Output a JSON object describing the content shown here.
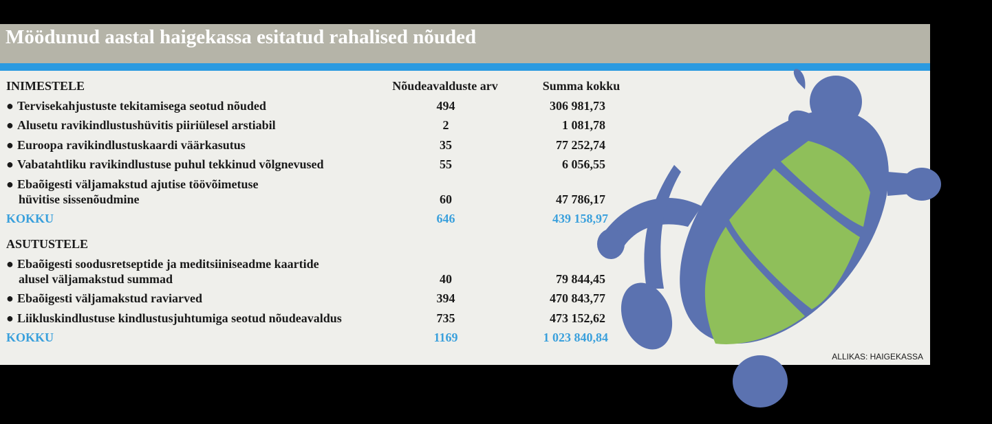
{
  "title": "Möödunud aastal haigekassa esitatud rahalised nõuded",
  "columns": [
    "Nõudeavalduste arv",
    "Summa kokku"
  ],
  "sections": [
    {
      "heading": "INIMESTELE",
      "rows": [
        {
          "lines": [
            "Tervisekahjustuste tekitamisega seotud nõuded"
          ],
          "count": "494",
          "sum": "306 981,73"
        },
        {
          "lines": [
            "Alusetu ravikindlustushüvitis piiriülesel arstiabil"
          ],
          "count": "2",
          "sum": "1 081,78"
        },
        {
          "lines": [
            "Euroopa ravikindlustuskaardi väärkasutus"
          ],
          "count": "35",
          "sum": "77 252,74"
        },
        {
          "lines": [
            "Vabatahtliku ravikindlustuse puhul tekkinud võlgnevused"
          ],
          "count": "55",
          "sum": "6 056,55"
        },
        {
          "lines": [
            "Ebaõigesti väljamakstud ajutise töövõimetuse",
            "hüvitise sissenõudmine"
          ],
          "count": "60",
          "sum": "47 786,17"
        }
      ],
      "total": {
        "label": "KOKKU",
        "count": "646",
        "sum": "439 158,97"
      }
    },
    {
      "heading": "ASUTUSTELE",
      "rows": [
        {
          "lines": [
            "Ebaõigesti soodusretseptide ja meditsiiniseadme kaartide",
            "alusel väljamakstud summad"
          ],
          "count": "40",
          "sum": "79 844,45"
        },
        {
          "lines": [
            "Ebaõigesti väljamakstud raviarved"
          ],
          "count": "394",
          "sum": "470 843,77"
        },
        {
          "lines": [
            "Liikluskindlustuse kindlustusjuhtumiga seotud nõudeavaldus"
          ],
          "count": "735",
          "sum": "473 152,62"
        }
      ],
      "total": {
        "label": "KOKKU",
        "count": "1169",
        "sum": "1 023 840,84"
      }
    }
  ],
  "source": "ALLIKAS: HAIGEKASSA"
}
